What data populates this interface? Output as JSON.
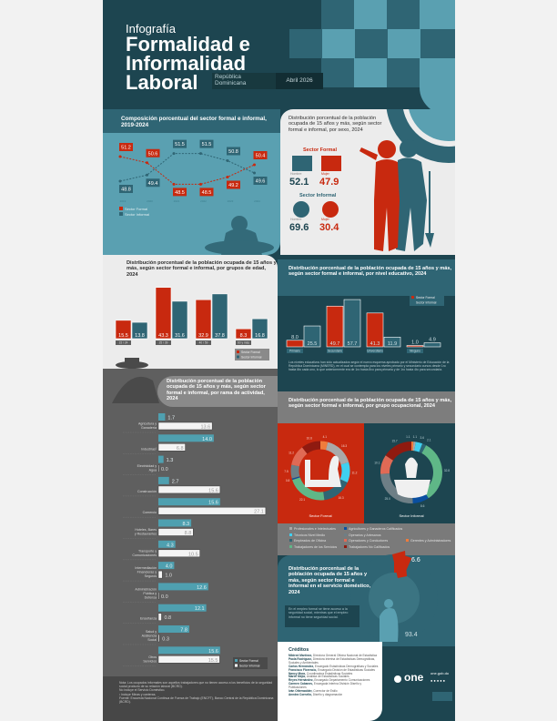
{
  "header": {
    "kicker": "Infografía",
    "title_line1": "Formalidad e",
    "title_line2": "Informalidad",
    "title_line3": "Laboral",
    "country": "República Dominicana",
    "date": "Abril 2026"
  },
  "colors": {
    "formal": "#c8290f",
    "informal": "#2f6574",
    "dark": "#1d4550",
    "teal": "#5aa0b1"
  },
  "trend": {
    "title": "Composición porcentual del sector formal e informal, 2019-2024",
    "chart_data": {
      "type": "line",
      "categories": [
        "2019",
        "2020",
        "2021",
        "2022",
        "2023",
        "2024"
      ],
      "series": [
        {
          "name": "Sector Formal",
          "values": [
            51.2,
            50.6,
            48.5,
            48.5,
            49.2,
            50.4
          ]
        },
        {
          "name": "Sector Informal",
          "values": [
            48.8,
            49.4,
            51.5,
            51.5,
            50.8,
            49.6
          ]
        }
      ],
      "ylim": [
        48,
        52
      ]
    },
    "legend": [
      "Sector Formal",
      "Sector Informal"
    ]
  },
  "sex": {
    "title": "Distribución porcentual de la población ocupada de 15 años y más, según sector formal e informal, por sexo, 2024",
    "formal_label": "Sector Formal",
    "informal_label": "Sector Informal",
    "formal": {
      "hombre_label": "Hombre",
      "hombre": "52.1",
      "mujer_label": "Mujer",
      "mujer": "47.9"
    },
    "informal": {
      "hombre_label": "Hombre",
      "hombre": "69.6",
      "mujer_label": "Mujer",
      "mujer": "30.4"
    }
  },
  "age": {
    "title": "Distribución porcentual de la población ocupada de 15 años y más, según sector formal e informal, por grupos de edad, 2024",
    "chart_data": {
      "type": "bar",
      "categories": [
        "15 / 24",
        "25 / 39",
        "40 / 59",
        "60 y más"
      ],
      "series": [
        {
          "name": "Sector Formal",
          "values": [
            15.5,
            43.3,
            32.9,
            8.3
          ]
        },
        {
          "name": "Sector Informal",
          "values": [
            13.8,
            31.6,
            37.8,
            16.8
          ]
        }
      ]
    },
    "legend": [
      "Sector Formal",
      "Sector Informal"
    ]
  },
  "edu": {
    "title": "Distribución porcentual de la población ocupada de 15 años y más, según sector formal e informal, por nivel educativo, 2024",
    "chart_data": {
      "type": "bar",
      "categories": [
        "Primario",
        "Secundario",
        "Universitario",
        "Ninguno"
      ],
      "series": [
        {
          "name": "Sector Formal",
          "values": [
            8.0,
            49.7,
            41.3,
            1.0
          ]
        },
        {
          "name": "Sector Informal",
          "values": [
            25.5,
            57.7,
            11.9,
            4.9
          ]
        }
      ]
    },
    "legend": [
      "Sector Formal",
      "Sector Informal"
    ],
    "note": "Los niveles educativos han sido actualizados según el nuevo esquema aprobado por el Ministerio de Educación de la República Dominicana (MINERD), en el cual se contempla para los niveles primario y secundario cursos desde 1ro hasta 6to cada uno, lo que anteriormente era de 1ro hasta 8vo para primaria y de 1ro hasta 4to para secundaria."
  },
  "activity": {
    "title": "Distribución porcentual de la población ocupada de 15 años y más, según sector formal e informal, por rama de actividad, 2024",
    "chart_data": {
      "type": "bar",
      "orientation": "horizontal",
      "categories": [
        "Agricultura y Ganadería",
        "Industrias¹",
        "Electricidad y Agua",
        "Construcción",
        "Comercio",
        "Hoteles, Bares y Restaurantes",
        "Transporte y Comunicaciones",
        "Intermediación Financieras y Seguros",
        "Administración Pública y Defensa",
        "Enseñanza",
        "Salud y Asistencia Social",
        "Otros Servicios"
      ],
      "series": [
        {
          "name": "Sector Formal",
          "values": [
            1.7,
            14.0,
            1.3,
            2.7,
            15.6,
            8.3,
            4.3,
            4.0,
            12.6,
            12.1,
            7.8,
            15.6
          ]
        },
        {
          "name": "Sector Informal",
          "values": [
            13.6,
            6.8,
            0.0,
            15.6,
            27.1,
            8.8,
            10.5,
            1.0,
            0.0,
            0.8,
            0.3,
            15.5
          ]
        }
      ]
    },
    "legend": [
      "Sector Formal",
      "Sector Informal"
    ],
    "notes": [
      "Nota: Los ocupados informales son aquellos trabajadores que no tienen acceso a los beneficios de la seguridad social producto de su relación laboral (BCRD).",
      "No incluye el Servicio Doméstico.",
      "¹ Incluye Minas y canteras.",
      "Fuente: Encuesta Nacional Continua de Fuerza de Trabajo (ENCFT), Banco Central de la República Dominicana (BCRD)."
    ]
  },
  "occupation": {
    "title": "Distribución porcentual de la población ocupada de 15 años y más, según sector formal e informal, por grupo ocupacional, 2024",
    "chart_data": {
      "type": "pie",
      "variant": "donut",
      "categories": [
        "Gerentes y Administradores",
        "Profesionales e Intelectuales",
        "Técnicos Nivel Medio",
        "Empleados de Oficina",
        "Trabajadores de los Servicios",
        "Agricultores y Ganaderos Calificados",
        "Operarios y Artesanos",
        "Operadores y Conductores",
        "Trabajadores No Calificados"
      ],
      "colors": [
        "#f07c3c",
        "#a9a9a9",
        "#3fd0f0",
        "#2f6574",
        "#5fb787",
        "#0a4fa0",
        "#6e7f86",
        "#e06a55",
        "#8f1a10"
      ],
      "series": [
        {
          "name": "Sector Formal",
          "values": [
            4.1,
            16.3,
            11.2,
            16.3,
            22.1,
            0.8,
            7.5,
            11.2,
            10.6
          ]
        },
        {
          "name": "Sector Informal",
          "values": [
            1.1,
            1.1,
            3.6,
            2.1,
            32.8,
            8.6,
            25.0,
            10.1,
            15.7
          ]
        }
      ]
    },
    "formal_label": "Sector Formal",
    "informal_label": "Sector Informal"
  },
  "domestic": {
    "title": "Distribución porcentual de la población ocupada de 15 años y más, según sector formal e informal en el servicio doméstico, 2024",
    "chart_data": {
      "type": "pie",
      "variant": "donut",
      "categories": [
        "Sector Formal",
        "Sector Informal"
      ],
      "values": [
        6.6,
        93.4
      ],
      "colors": [
        "#c8290f",
        "#2f6574"
      ]
    },
    "formal_value": "6.6",
    "informal_value": "93.4",
    "note": "En el empleo formal se tiene acceso a la seguridad social, mientras que el empleo informal no tiene seguridad social."
  },
  "credits": {
    "title": "Créditos",
    "items": [
      {
        "name": "Mildred Martínez,",
        "role": "Directora General Oficina Nacional de Estadística"
      },
      {
        "name": "Paola Rodríguez,",
        "role": "Directora Interina de Estadísticas Demográficas, Sociales y Ambientales"
      },
      {
        "name": "Carlos Hernández,",
        "role": "Encargado Estadísticas Demográficas y Sociales"
      },
      {
        "name": "Francisco Florencio,",
        "role": "Encargado División de Estadísticas Sociales"
      },
      {
        "name": "Nancy Mora,",
        "role": "Coordinadora Estadísticas Sociales"
      },
      {
        "name": "Mariel Mejía,",
        "role": "Analista de Estadísticas Sociales"
      },
      {
        "name": "Reyes Hernández,",
        "role": "Encargado Departamento Comunicaciones"
      },
      {
        "name": "Carmen Cabanes,",
        "role": "Encargada Interina División Diseño y Publicaciones"
      },
      {
        "name": "Iván Ottenwalder,",
        "role": "Corrector de Estilo"
      },
      {
        "name": "Anndra Cornelio,",
        "role": "Diseño y diagramación"
      }
    ]
  },
  "logo": {
    "text": "one",
    "url": "one.gob.do"
  }
}
